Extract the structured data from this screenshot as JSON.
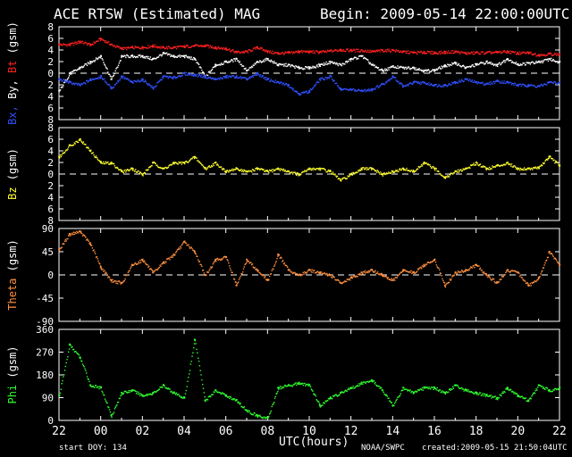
{
  "header": {
    "title": "ACE RTSW (Estimated) MAG",
    "begin": "Begin: 2009-05-14 22:00:00UTC"
  },
  "footer": {
    "start_doy": "start DOY: 134",
    "x_axis_label": "UTC(hours)",
    "credit": "NOAA/SWPC",
    "created": "created:2009-05-15 21:50:04UTC"
  },
  "colors": {
    "background": "#000000",
    "Bt": "#ff2020",
    "By": "#ffffff",
    "Bx": "#3050ff",
    "Bz": "#ffff30",
    "Theta": "#ff9040",
    "Phi": "#30ff30",
    "zero_line": "#ffffff"
  },
  "chart_data": [
    {
      "type": "scatter",
      "ylabel_parts": [
        {
          "text": "Bx,",
          "color": "#3050ff"
        },
        {
          "text": " By,",
          "color": "#ffffff"
        },
        {
          "text": " Bt",
          "color": "#ff2020"
        },
        {
          "text": " (gsm)",
          "color": "#ffffff"
        }
      ],
      "ylim": [
        -8,
        8
      ],
      "yticks": [
        -8,
        -6,
        -4,
        -2,
        0,
        2,
        4,
        6,
        8
      ],
      "ytick_labels": [
        "8",
        "6",
        "4",
        "2",
        "0",
        "2",
        "4",
        "6",
        "8"
      ],
      "zero_line": true,
      "xlim": [
        0,
        24
      ],
      "series": [
        {
          "name": "Bt",
          "color": "#ff2020",
          "x": [
            0,
            0.5,
            1,
            1.5,
            2,
            2.5,
            3,
            3.5,
            4,
            4.5,
            5,
            5.5,
            6,
            6.5,
            7,
            7.5,
            8,
            8.5,
            9,
            9.5,
            10,
            10.5,
            11,
            11.5,
            12,
            12.5,
            13,
            13.5,
            14,
            14.5,
            15,
            15.5,
            16,
            16.5,
            17,
            17.5,
            18,
            18.5,
            19,
            19.5,
            20,
            20.5,
            21,
            21.5,
            22,
            22.5,
            23,
            23.5,
            24
          ],
          "y": [
            5,
            5,
            5.5,
            5,
            6,
            5,
            4.3,
            4.5,
            4.5,
            4.8,
            4.5,
            4.5,
            4.7,
            4.8,
            4.8,
            4.5,
            4.3,
            3.7,
            3.8,
            4.5,
            3.8,
            3.5,
            3.6,
            3.8,
            3.8,
            3.7,
            3.9,
            4.1,
            4,
            4,
            3.8,
            4,
            4,
            3.8,
            3.6,
            3.7,
            3.6,
            3.7,
            3.8,
            3.5,
            3.6,
            3.6,
            3.7,
            3.8,
            3.5,
            3.6,
            3.2,
            3.4,
            3.3
          ]
        },
        {
          "name": "By",
          "color": "#ffffff",
          "x": [
            0,
            0.5,
            1,
            1.5,
            2,
            2.5,
            3,
            3.5,
            4,
            4.5,
            5,
            5.5,
            6,
            6.5,
            7,
            7.5,
            8,
            8.5,
            9,
            9.5,
            10,
            10.5,
            11,
            11.5,
            12,
            12.5,
            13,
            13.5,
            14,
            14.5,
            15,
            15.5,
            16,
            16.5,
            17,
            17.5,
            18,
            18.5,
            19,
            19.5,
            20,
            20.5,
            21,
            21.5,
            22,
            22.5,
            23,
            23.5,
            24
          ],
          "y": [
            -3,
            0,
            1,
            2,
            3,
            -1,
            3,
            3,
            3,
            2.5,
            3.5,
            3,
            3,
            2.5,
            -0.5,
            1.5,
            2,
            2.5,
            0.5,
            2,
            2.5,
            1.5,
            1.5,
            1,
            1,
            1.5,
            2,
            1.5,
            2.5,
            3,
            1.5,
            0.5,
            1.2,
            1,
            1,
            0.5,
            0.6,
            1.4,
            1.8,
            1,
            1.6,
            2,
            1.5,
            2.5,
            1.6,
            1.8,
            2,
            2.5,
            2
          ]
        },
        {
          "name": "Bx",
          "color": "#3050ff",
          "x": [
            0,
            0.5,
            1,
            1.5,
            2,
            2.5,
            3,
            3.5,
            4,
            4.5,
            5,
            5.5,
            6,
            6.5,
            7,
            7.5,
            8,
            8.5,
            9,
            9.5,
            10,
            10.5,
            11,
            11.5,
            12,
            12.5,
            13,
            13.5,
            14,
            14.5,
            15,
            15.5,
            16,
            16.5,
            17,
            17.5,
            18,
            18.5,
            19,
            19.5,
            20,
            20.5,
            21,
            21.5,
            22,
            22.5,
            23,
            23.5,
            24
          ],
          "y": [
            -1,
            -1.5,
            -2,
            -1,
            -0.5,
            -2.5,
            -0.5,
            -1.5,
            -1,
            -2.5,
            -0.5,
            -0.7,
            0,
            -0.2,
            -0.5,
            -1,
            -0.5,
            -0.5,
            -1,
            0,
            -1,
            -1.5,
            -2,
            -3.5,
            -3,
            -1,
            -0.5,
            -2.7,
            -2.8,
            -3,
            -2.7,
            -1.8,
            -0.5,
            -2.2,
            -1.5,
            -1.6,
            -2,
            -2,
            -1.5,
            -1,
            -1.5,
            -1.8,
            -1.3,
            -1.5,
            -2,
            -2,
            -2.2,
            -1.5,
            -1.6
          ]
        }
      ]
    },
    {
      "type": "scatter",
      "ylabel_parts": [
        {
          "text": "Bz",
          "color": "#ffff30"
        },
        {
          "text": " (gsm)",
          "color": "#ffffff"
        }
      ],
      "ylim": [
        -8,
        8
      ],
      "yticks": [
        -8,
        -6,
        -4,
        -2,
        0,
        2,
        4,
        6,
        8
      ],
      "ytick_labels": [
        "8",
        "6",
        "4",
        "2",
        "0",
        "2",
        "4",
        "6",
        "8"
      ],
      "zero_line": true,
      "xlim": [
        0,
        24
      ],
      "series": [
        {
          "name": "Bz",
          "color": "#ffff30",
          "x": [
            0,
            0.5,
            1,
            1.5,
            2,
            2.5,
            3,
            3.5,
            4,
            4.5,
            5,
            5.5,
            6,
            6.5,
            7,
            7.5,
            8,
            8.5,
            9,
            9.5,
            10,
            10.5,
            11,
            11.5,
            12,
            12.5,
            13,
            13.5,
            14,
            14.5,
            15,
            15.5,
            16,
            16.5,
            17,
            17.5,
            18,
            18.5,
            19,
            19.5,
            20,
            20.5,
            21,
            21.5,
            22,
            22.5,
            23,
            23.5,
            24
          ],
          "y": [
            3,
            5,
            6,
            4,
            2,
            2,
            0.5,
            1,
            0,
            2,
            1,
            2,
            2,
            3,
            1,
            2,
            0.5,
            1,
            0.5,
            1,
            0.5,
            1,
            0.5,
            0,
            1,
            1,
            0.5,
            -1,
            0,
            1,
            1,
            0,
            0.5,
            1,
            0.5,
            2,
            1,
            -0.5,
            0.5,
            1,
            2,
            1,
            1.5,
            2,
            1,
            1,
            1.2,
            3,
            1.5
          ]
        }
      ]
    },
    {
      "type": "scatter",
      "ylabel_parts": [
        {
          "text": "Theta",
          "color": "#ff9040"
        },
        {
          "text": " (gsm)",
          "color": "#ffffff"
        }
      ],
      "ylim": [
        -90,
        90
      ],
      "yticks": [
        -90,
        -45,
        0,
        45,
        90
      ],
      "ytick_labels": [
        "-90",
        "-45",
        "0",
        "45",
        "90"
      ],
      "zero_line": true,
      "xlim": [
        0,
        24
      ],
      "series": [
        {
          "name": "Theta",
          "color": "#ff9040",
          "x": [
            0,
            0.5,
            1,
            1.5,
            2,
            2.5,
            3,
            3.5,
            4,
            4.5,
            5,
            5.5,
            6,
            6.5,
            7,
            7.5,
            8,
            8.5,
            9,
            9.5,
            10,
            10.5,
            11,
            11.5,
            12,
            12.5,
            13,
            13.5,
            14,
            14.5,
            15,
            15.5,
            16,
            16.5,
            17,
            17.5,
            18,
            18.5,
            19,
            19.5,
            20,
            20.5,
            21,
            21.5,
            22,
            22.5,
            23,
            23.5,
            24
          ],
          "y": [
            50,
            80,
            85,
            60,
            15,
            -10,
            -15,
            20,
            30,
            5,
            25,
            40,
            65,
            45,
            0,
            30,
            35,
            -20,
            30,
            10,
            -10,
            40,
            10,
            0,
            10,
            5,
            0,
            -15,
            -5,
            5,
            10,
            0,
            -10,
            10,
            5,
            20,
            30,
            -20,
            5,
            10,
            20,
            0,
            -15,
            10,
            5,
            -20,
            -5,
            45,
            20
          ]
        }
      ]
    },
    {
      "type": "scatter",
      "ylabel_parts": [
        {
          "text": "Phi",
          "color": "#30ff30"
        },
        {
          "text": " (gsm)",
          "color": "#ffffff"
        }
      ],
      "ylim": [
        0,
        360
      ],
      "yticks": [
        0,
        90,
        180,
        270,
        360
      ],
      "ytick_labels": [
        "0",
        "90",
        "180",
        "270",
        "360"
      ],
      "zero_line": false,
      "xlim": [
        0,
        24
      ],
      "series": [
        {
          "name": "Phi",
          "color": "#30ff30",
          "x": [
            0,
            0.5,
            1,
            1.5,
            2,
            2.5,
            3,
            3.5,
            4,
            4.5,
            5,
            5.5,
            6,
            6.5,
            7,
            7.5,
            8,
            8.5,
            9,
            9.5,
            10,
            10.5,
            11,
            11.5,
            12,
            12.5,
            13,
            13.5,
            14,
            14.5,
            15,
            15.5,
            16,
            16.5,
            17,
            17.5,
            18,
            18.5,
            19,
            19.5,
            20,
            20.5,
            21,
            21.5,
            22,
            22.5,
            23,
            23.5,
            24
          ],
          "y": [
            100,
            300,
            250,
            140,
            130,
            20,
            110,
            120,
            100,
            110,
            140,
            110,
            90,
            320,
            80,
            120,
            100,
            80,
            40,
            20,
            10,
            130,
            140,
            150,
            140,
            60,
            90,
            110,
            130,
            150,
            160,
            120,
            60,
            130,
            110,
            130,
            130,
            110,
            140,
            120,
            110,
            100,
            90,
            130,
            100,
            80,
            140,
            120,
            130
          ]
        }
      ]
    }
  ],
  "x_axis": {
    "ticks": [
      0,
      2,
      4,
      6,
      8,
      10,
      12,
      14,
      16,
      18,
      20,
      22,
      24
    ],
    "tick_labels": [
      "22",
      "00",
      "02",
      "04",
      "06",
      "08",
      "10",
      "12",
      "14",
      "16",
      "18",
      "20",
      "22"
    ]
  }
}
